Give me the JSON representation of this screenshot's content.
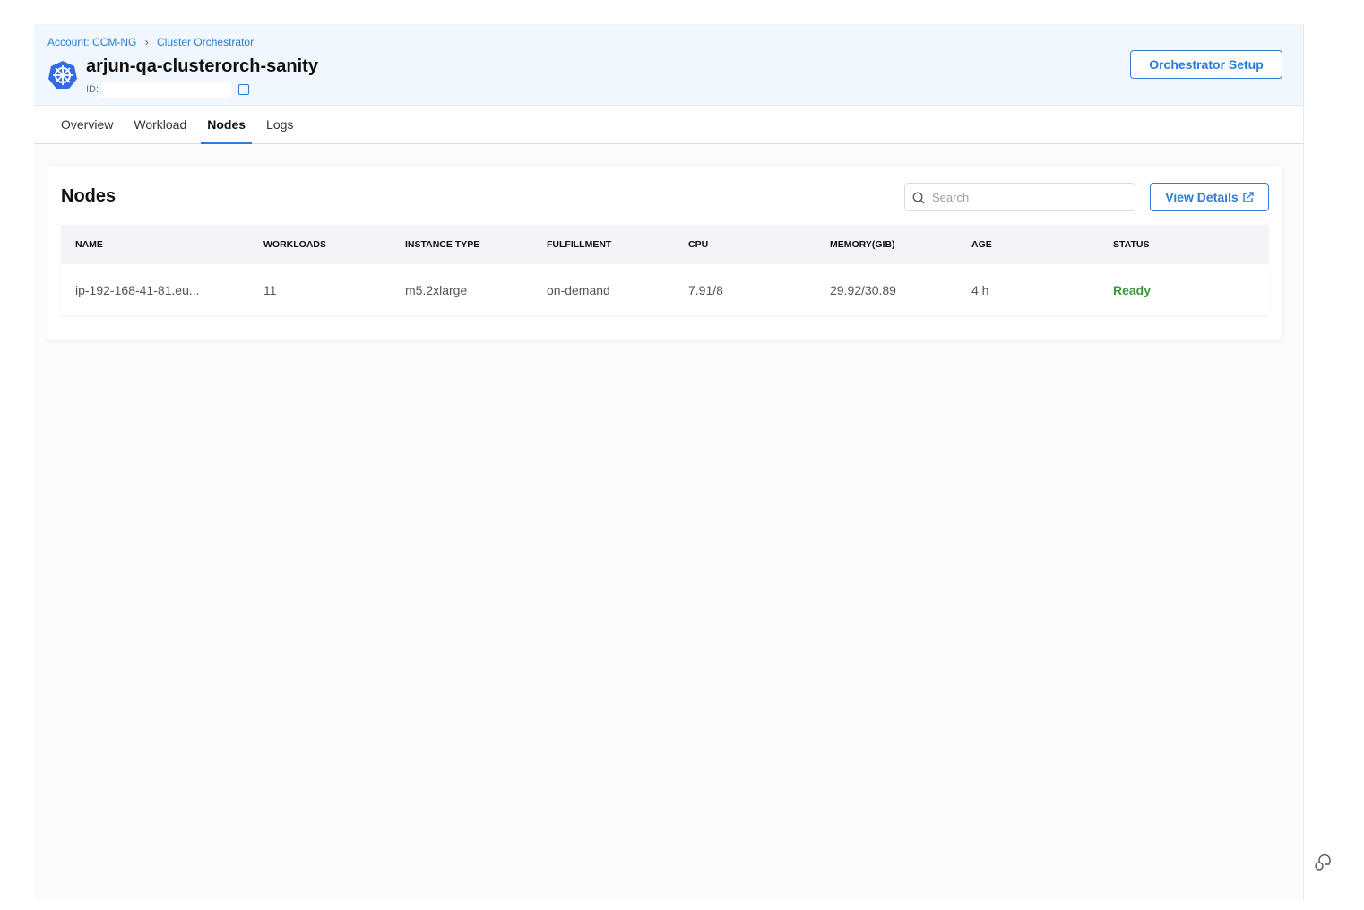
{
  "breadcrumb": [
    "Account: CCM-NG",
    "Cluster Orchestrator"
  ],
  "cluster": {
    "name": "arjun-qa-clusterorch-sanity",
    "id_label": "ID:"
  },
  "setup_label": "Orchestrator Setup",
  "tabs": [
    {
      "label": "Overview"
    },
    {
      "label": "Workload"
    },
    {
      "label": "Nodes",
      "active": true
    },
    {
      "label": "Logs"
    }
  ],
  "nodes": {
    "title": "Nodes",
    "search_placeholder": "Search",
    "view_details": "View Details",
    "columns": [
      "NAME",
      "WORKLOADS",
      "INSTANCE TYPE",
      "FULFILLMENT",
      "CPU",
      "MEMORY(GIB)",
      "AGE",
      "STATUS"
    ],
    "rows": [
      [
        "ip-192-168-41-81.eu...",
        "11",
        "m5.2xlarge",
        "on-demand",
        "7.91/8",
        "29.92/30.89",
        "4 h",
        "Ready"
      ]
    ]
  },
  "colors": {
    "accent": "#2d7bd6",
    "ready": "#3a9a3a"
  }
}
